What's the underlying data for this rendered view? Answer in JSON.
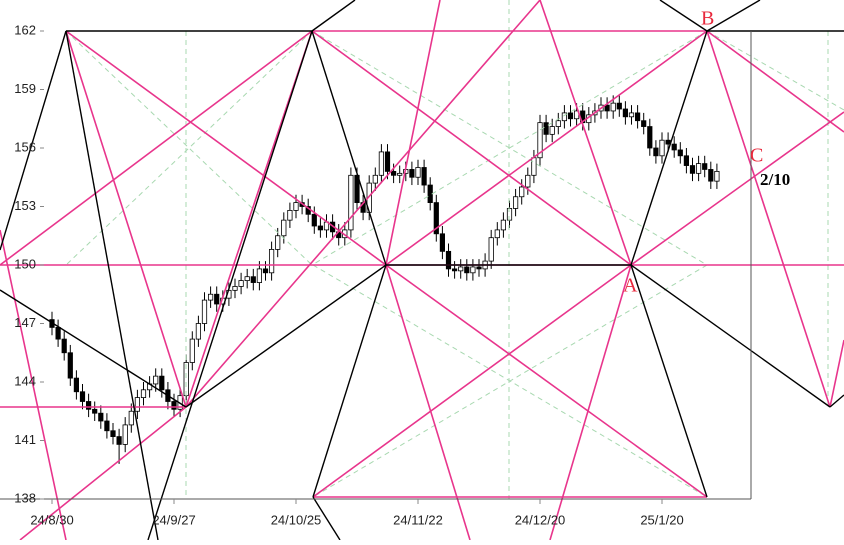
{
  "chart_data": {
    "type": "candlestick",
    "categories": [
      "24/8/30",
      null,
      null,
      null,
      null,
      null,
      null,
      null,
      null,
      null,
      null,
      null,
      null,
      null,
      null,
      null,
      null,
      null,
      null,
      null,
      "24/9/27",
      null,
      null,
      null,
      null,
      null,
      null,
      null,
      null,
      null,
      null,
      null,
      null,
      null,
      null,
      null,
      null,
      null,
      null,
      null,
      "24/10/25",
      null,
      null,
      null,
      null,
      null,
      null,
      null,
      null,
      null,
      null,
      null,
      null,
      null,
      null,
      null,
      null,
      null,
      null,
      null,
      "24/11/22",
      null,
      null,
      null,
      null,
      null,
      null,
      null,
      null,
      null,
      null,
      null,
      null,
      null,
      null,
      null,
      null,
      null,
      null,
      null,
      "24/12/20",
      null,
      null,
      null,
      null,
      null,
      null,
      null,
      null,
      null,
      null,
      null,
      null,
      null,
      null,
      null,
      null,
      null,
      null,
      null,
      "25/1/20",
      null,
      null,
      null,
      null,
      null,
      null,
      null,
      null,
      null
    ],
    "open": [
      147.2,
      146.8,
      146.2,
      145.5,
      144.2,
      143.5,
      143.0,
      142.6,
      142.4,
      142.0,
      141.5,
      141.2,
      140.8,
      141.8,
      142.5,
      143.2,
      143.6,
      143.9,
      144.3,
      143.6,
      143.0,
      142.6,
      143.3,
      145.0,
      146.2,
      147.0,
      148.2,
      148.5,
      148.0,
      148.3,
      148.7,
      148.9,
      149.2,
      149.4,
      149.1,
      149.8,
      149.6,
      150.8,
      151.5,
      152.3,
      152.8,
      153.2,
      153.0,
      152.6,
      152.0,
      151.8,
      152.2,
      151.7,
      151.4,
      151.8,
      154.6,
      153.2,
      152.7,
      154.2,
      154.6,
      155.8,
      154.8,
      154.6,
      154.7,
      154.9,
      154.5,
      155.0,
      154.1,
      153.2,
      151.6,
      150.7,
      149.8,
      149.7,
      149.9,
      149.6,
      149.9,
      149.8,
      150.2,
      151.4,
      151.8,
      152.3,
      152.9,
      153.5,
      154.0,
      154.6,
      155.5,
      157.3,
      156.7,
      157.1,
      157.4,
      157.8,
      157.5,
      157.9,
      157.3,
      157.7,
      157.9,
      158.2,
      157.9,
      158.3,
      158.0,
      157.6,
      157.8,
      157.4,
      157.1,
      156.0,
      155.6,
      156.4,
      156.2,
      155.9,
      155.6,
      155.1,
      154.7,
      155.2,
      154.9,
      154.3
    ],
    "high": [
      147.6,
      147.2,
      146.6,
      145.9,
      144.6,
      143.9,
      143.4,
      143.0,
      142.8,
      142.4,
      141.9,
      141.6,
      142.2,
      142.9,
      143.6,
      144.0,
      144.3,
      144.7,
      144.7,
      144.0,
      143.4,
      143.7,
      145.4,
      146.6,
      147.4,
      148.6,
      148.9,
      148.9,
      148.7,
      149.1,
      149.3,
      149.6,
      149.8,
      149.8,
      150.2,
      150.2,
      151.2,
      151.9,
      152.7,
      153.2,
      153.6,
      153.6,
      153.4,
      153.0,
      152.4,
      152.6,
      152.6,
      152.1,
      152.2,
      155.0,
      155.0,
      153.6,
      154.6,
      155.0,
      156.2,
      156.2,
      155.2,
      155.1,
      155.3,
      155.3,
      155.4,
      155.4,
      154.5,
      153.6,
      152.0,
      151.1,
      150.2,
      150.3,
      150.3,
      150.3,
      150.3,
      150.6,
      151.8,
      152.2,
      152.7,
      153.3,
      153.9,
      154.4,
      155.0,
      155.9,
      157.7,
      157.7,
      157.5,
      157.8,
      158.2,
      158.2,
      158.3,
      158.3,
      158.1,
      158.3,
      158.6,
      158.6,
      158.7,
      158.7,
      158.4,
      158.2,
      158.2,
      157.8,
      157.5,
      156.4,
      156.8,
      156.8,
      156.6,
      156.3,
      156.0,
      155.5,
      155.6,
      155.6,
      155.3,
      155.2
    ],
    "low": [
      146.4,
      145.8,
      145.1,
      143.8,
      143.1,
      142.6,
      142.2,
      142.0,
      141.6,
      141.1,
      140.8,
      139.8,
      140.4,
      141.4,
      142.1,
      142.8,
      143.2,
      143.5,
      143.2,
      142.6,
      142.2,
      142.2,
      142.9,
      144.6,
      145.8,
      146.6,
      147.8,
      147.6,
      147.6,
      147.9,
      148.3,
      148.5,
      148.8,
      148.7,
      148.7,
      149.2,
      149.2,
      150.4,
      151.1,
      151.9,
      152.4,
      152.6,
      152.2,
      151.6,
      151.4,
      151.4,
      151.3,
      151.0,
      151.0,
      151.4,
      152.8,
      152.3,
      152.3,
      153.8,
      154.2,
      154.4,
      154.2,
      154.2,
      154.3,
      154.1,
      154.1,
      153.7,
      152.8,
      151.2,
      150.3,
      149.4,
      149.3,
      149.3,
      149.2,
      149.2,
      149.4,
      149.4,
      149.8,
      151.0,
      151.4,
      151.9,
      152.5,
      153.1,
      153.6,
      154.2,
      155.1,
      156.3,
      156.3,
      156.7,
      157.0,
      157.1,
      157.1,
      156.9,
      156.9,
      157.3,
      157.5,
      157.5,
      157.5,
      157.6,
      157.2,
      157.2,
      157.0,
      156.7,
      155.6,
      155.2,
      155.2,
      155.8,
      155.5,
      155.2,
      154.7,
      154.3,
      154.3,
      154.5,
      153.9,
      153.9
    ],
    "close": [
      146.8,
      146.2,
      145.5,
      144.2,
      143.5,
      143.0,
      142.6,
      142.4,
      142.0,
      141.5,
      141.2,
      140.8,
      141.8,
      142.5,
      143.2,
      143.6,
      143.9,
      144.3,
      143.6,
      143.0,
      142.6,
      143.3,
      145.0,
      146.2,
      147.0,
      148.2,
      148.5,
      148.0,
      148.3,
      148.7,
      148.9,
      149.2,
      149.4,
      149.1,
      149.8,
      149.6,
      150.8,
      151.5,
      152.3,
      152.8,
      153.2,
      153.0,
      152.6,
      152.0,
      151.8,
      152.2,
      151.7,
      151.4,
      151.8,
      154.6,
      153.2,
      152.7,
      154.2,
      154.6,
      155.8,
      154.8,
      154.6,
      154.7,
      154.9,
      154.5,
      155.0,
      154.1,
      153.2,
      151.6,
      150.7,
      149.8,
      149.7,
      149.9,
      149.6,
      149.9,
      149.8,
      150.2,
      151.4,
      151.8,
      152.3,
      152.9,
      153.5,
      154.0,
      154.6,
      155.5,
      157.3,
      156.7,
      157.1,
      157.4,
      157.8,
      157.5,
      157.9,
      157.3,
      157.7,
      157.9,
      158.2,
      157.9,
      158.3,
      158.0,
      157.6,
      157.8,
      157.4,
      157.1,
      156.0,
      155.6,
      156.4,
      156.2,
      155.9,
      155.6,
      155.1,
      154.7,
      155.2,
      154.9,
      154.3,
      154.8
    ],
    "up_color": "#ffffff",
    "down_color": "#000000",
    "ylim": [
      138,
      162
    ],
    "yticks": [
      138,
      141,
      144,
      147,
      150,
      153,
      156,
      159,
      162
    ],
    "annotations": {
      "a": "A",
      "b": "B",
      "c": "C",
      "ratio": "2/10"
    }
  }
}
